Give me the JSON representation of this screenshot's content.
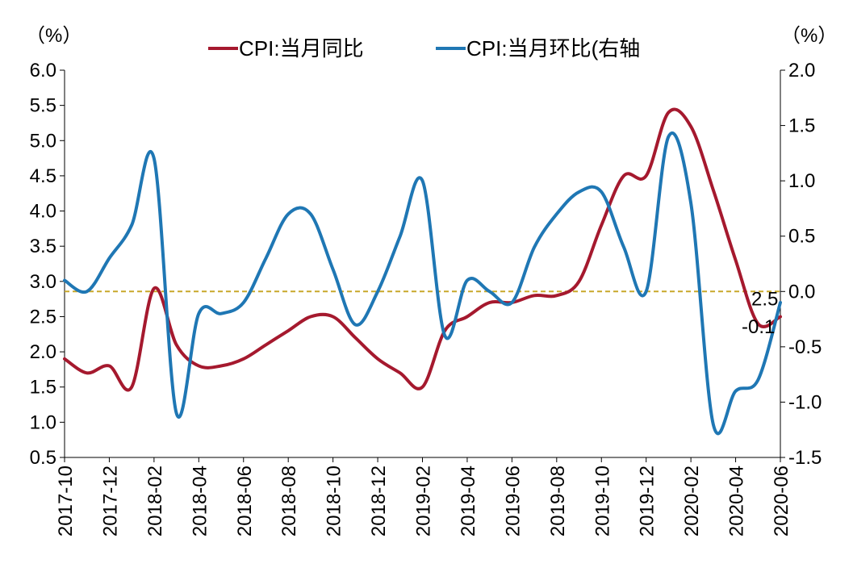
{
  "chart_data": {
    "type": "line",
    "left_unit": "（%）",
    "right_unit": "（%）",
    "y_left_ticks": [
      "6.0",
      "5.5",
      "5.0",
      "4.5",
      "4.0",
      "3.5",
      "3.0",
      "2.5",
      "2.0",
      "1.5",
      "1.0",
      "0.5"
    ],
    "y_right_ticks": [
      "2.0",
      "1.5",
      "1.0",
      "0.5",
      "0.0",
      "-0.5",
      "-1.0",
      "-1.5"
    ],
    "ylim_left": [
      0.5,
      6.0
    ],
    "ylim_right": [
      -1.5,
      2.0
    ],
    "x_tick_labels": [
      "2017-10",
      "2017-12",
      "2018-02",
      "2018-04",
      "2018-06",
      "2018-08",
      "2018-10",
      "2018-12",
      "2019-02",
      "2019-04",
      "2019-06",
      "2019-08",
      "2019-10",
      "2019-12",
      "2020-02",
      "2020-04",
      "2020-06"
    ],
    "x": [
      "2017-10",
      "2017-11",
      "2017-12",
      "2018-01",
      "2018-02",
      "2018-03",
      "2018-04",
      "2018-05",
      "2018-06",
      "2018-07",
      "2018-08",
      "2018-09",
      "2018-10",
      "2018-11",
      "2018-12",
      "2019-01",
      "2019-02",
      "2019-03",
      "2019-04",
      "2019-05",
      "2019-06",
      "2019-07",
      "2019-08",
      "2019-09",
      "2019-10",
      "2019-11",
      "2019-12",
      "2020-01",
      "2020-02",
      "2020-03",
      "2020-04",
      "2020-05",
      "2020-06"
    ],
    "series": [
      {
        "name": "CPI:当月同比",
        "axis": "left",
        "color": "#a5192e",
        "values": [
          1.9,
          1.7,
          1.8,
          1.5,
          2.9,
          2.1,
          1.8,
          1.8,
          1.9,
          2.1,
          2.3,
          2.5,
          2.5,
          2.2,
          1.9,
          1.7,
          1.5,
          2.3,
          2.5,
          2.7,
          2.7,
          2.8,
          2.8,
          3.0,
          3.8,
          4.5,
          4.5,
          5.4,
          5.2,
          4.3,
          3.3,
          2.4,
          2.5
        ]
      },
      {
        "name": "CPI:当月环比(右轴",
        "axis": "right",
        "color": "#1f77b4",
        "values": [
          0.1,
          0.0,
          0.3,
          0.6,
          1.2,
          -1.1,
          -0.2,
          -0.2,
          -0.1,
          0.3,
          0.7,
          0.7,
          0.2,
          -0.3,
          0.0,
          0.5,
          1.0,
          -0.4,
          0.1,
          0.0,
          -0.1,
          0.4,
          0.7,
          0.9,
          0.9,
          0.4,
          0.0,
          1.4,
          0.8,
          -1.2,
          -0.9,
          -0.8,
          -0.1
        ]
      }
    ],
    "reference_line": {
      "value": 0.0,
      "axis": "right",
      "color": "#c8a82a"
    },
    "annotations": [
      {
        "text": "2.5",
        "x": "2020-06",
        "value": 2.5,
        "axis": "left"
      },
      {
        "text": "-0.1",
        "x": "2020-06",
        "value": -0.1,
        "axis": "right"
      }
    ],
    "legend": {
      "position": "top-center"
    },
    "grid": false
  }
}
